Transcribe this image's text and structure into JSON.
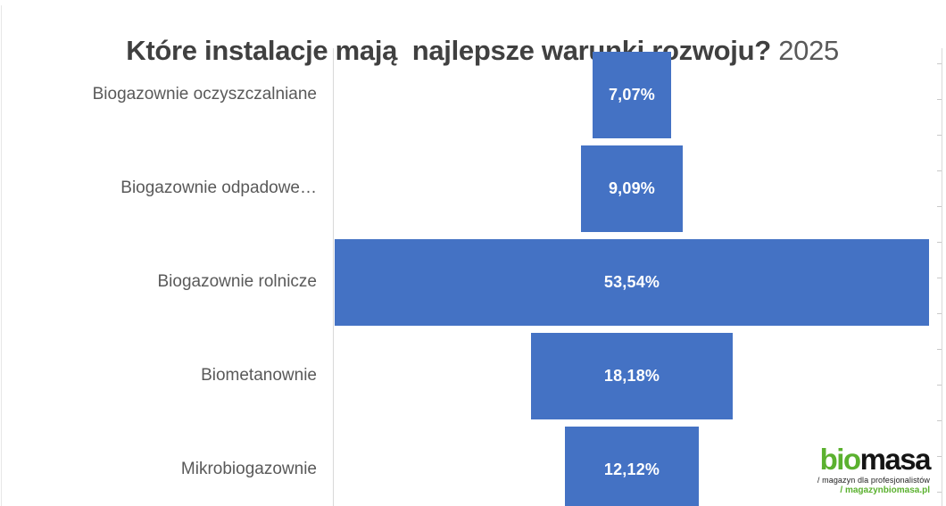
{
  "title": {
    "main": "Które instalacje mają  najlepsze warunki rozwoju?",
    "year": " 2025"
  },
  "chart_data": {
    "type": "bar",
    "variant": "centered-funnel",
    "orientation": "horizontal",
    "title": "Które instalacje mają najlepsze warunki rozwoju? 2025",
    "categories": [
      "Biogazownie oczyszczalniane",
      "Biogazownie odpadowe…",
      "Biogazownie rolnicze",
      "Biometanownie",
      "Mikrobiogazownie"
    ],
    "values": [
      7.07,
      9.09,
      53.54,
      18.18,
      12.12
    ],
    "value_labels": [
      "7,07%",
      "9,09%",
      "53,54%",
      "18,18%",
      "12,12%"
    ],
    "unit": "%",
    "xlim": [
      0,
      55
    ],
    "grid": false,
    "legend": false,
    "bar_color": "#4472C4",
    "value_label_color": "#FFFFFF",
    "axis_color": "#D9D9D9",
    "category_label_color": "#595959"
  },
  "logo": {
    "brand_green": "bio",
    "brand_black": "masa",
    "tagline": "/ magazyn dla profesjonalistów",
    "site": "/ magazynbiomasa.pl",
    "green_color": "#5BB12F"
  }
}
